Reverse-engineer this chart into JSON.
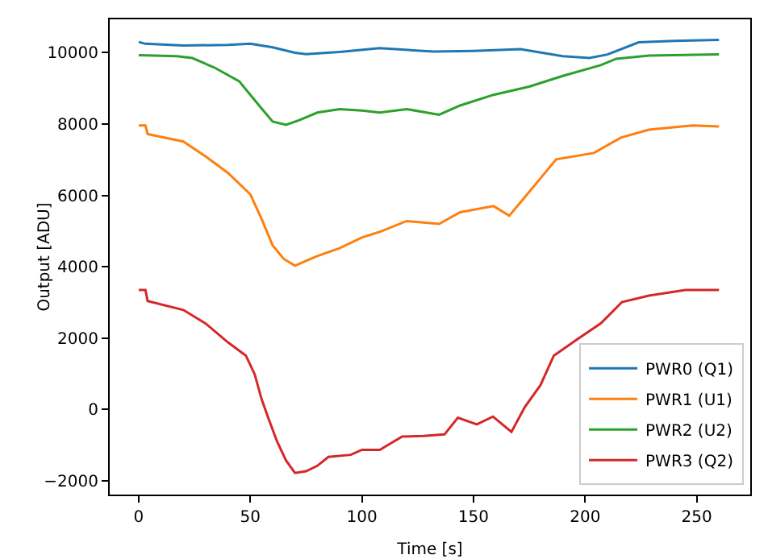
{
  "chart_data": {
    "type": "line",
    "xlabel": "Time [s]",
    "ylabel": "Output [ADU]",
    "xlim": [
      -13,
      274
    ],
    "ylim": [
      -2385,
      10935
    ],
    "xticks": [
      0,
      50,
      100,
      150,
      200,
      250
    ],
    "yticks": [
      -2000,
      0,
      2000,
      4000,
      6000,
      8000,
      10000
    ],
    "grid": false,
    "legend": "bottom right",
    "marker": "none",
    "line_style": "solid",
    "series": [
      {
        "name": "PWR0 (Q1)",
        "color": "#1f77b4",
        "x": [
          0,
          3,
          20,
          40,
          50,
          60,
          70,
          75,
          90,
          108,
          132,
          150,
          171,
          190,
          202,
          210,
          224,
          240,
          260
        ],
        "values": [
          10300,
          10250,
          10200,
          10220,
          10250,
          10150,
          10000,
          9960,
          10020,
          10130,
          10030,
          10050,
          10100,
          9900,
          9850,
          9950,
          10290,
          10330,
          10360
        ]
      },
      {
        "name": "PWR1 (U1)",
        "color": "#ff7f0e",
        "x": [
          0,
          3,
          4,
          20,
          30,
          40,
          50,
          55,
          60,
          65,
          70,
          80,
          90,
          100,
          108,
          120,
          134.6,
          144,
          159,
          166,
          173,
          180,
          187,
          204,
          216,
          228.6,
          248,
          260
        ],
        "values": [
          7960,
          7960,
          7720,
          7510,
          7090,
          6630,
          6030,
          5350,
          4600,
          4220,
          4030,
          4300,
          4520,
          4820,
          4980,
          5280,
          5200,
          5530,
          5700,
          5430,
          5950,
          6480,
          7010,
          7190,
          7620,
          7840,
          7960,
          7930
        ]
      },
      {
        "name": "PWR2 (U2)",
        "color": "#2ca02c",
        "x": [
          0,
          17,
          24,
          34,
          45,
          50,
          55,
          60,
          66,
          72,
          80,
          90,
          100,
          108,
          120,
          134.6,
          144,
          159,
          175,
          190,
          207,
          214,
          228.6,
          260
        ],
        "values": [
          9930,
          9900,
          9850,
          9580,
          9200,
          8820,
          8440,
          8070,
          7980,
          8110,
          8320,
          8420,
          8380,
          8320,
          8420,
          8260,
          8520,
          8820,
          9050,
          9350,
          9650,
          9830,
          9920,
          9950
        ]
      },
      {
        "name": "PWR3 (Q2)",
        "color": "#d62728",
        "x": [
          0,
          3,
          4,
          20,
          30,
          40,
          48,
          52,
          55,
          58,
          62,
          66,
          70,
          75,
          80,
          85,
          95,
          100,
          108,
          118,
          127.5,
          137,
          143,
          151.5,
          158.7,
          167,
          173,
          180,
          186,
          197,
          207,
          216.5,
          228.6,
          245,
          260
        ],
        "values": [
          3350,
          3350,
          3040,
          2790,
          2410,
          1880,
          1510,
          980,
          300,
          -230,
          -900,
          -1430,
          -1780,
          -1730,
          -1580,
          -1330,
          -1270,
          -1130,
          -1130,
          -760,
          -740,
          -700,
          -230,
          -420,
          -200,
          -630,
          70,
          680,
          1510,
          1990,
          2410,
          3010,
          3190,
          3350,
          3350
        ]
      }
    ]
  }
}
